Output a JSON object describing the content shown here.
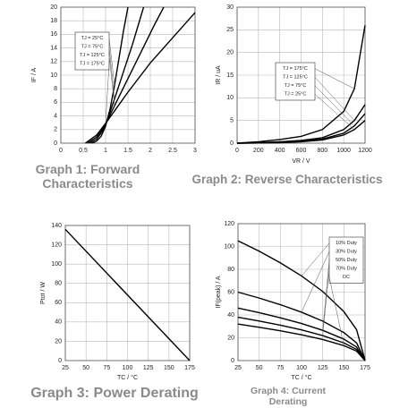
{
  "chart_data": [
    {
      "type": "line",
      "title": "Graph 1: Forward Characteristics",
      "ylabel": "IF / A",
      "xlim": [
        0,
        3
      ],
      "xticks": [
        0,
        0.5,
        1,
        1.5,
        2,
        2.5,
        3
      ],
      "ylim": [
        0,
        20
      ],
      "yticks": [
        0,
        2,
        4,
        6,
        8,
        10,
        12,
        14,
        16,
        18,
        20
      ],
      "grid": true,
      "series": [
        {
          "name": "TJ = 25°C",
          "color": "#000000",
          "x": [
            0.7,
            0.8,
            0.9,
            1.0,
            1.1,
            1.2,
            1.3,
            1.4,
            1.5
          ],
          "values": [
            0,
            0.3,
            1,
            2.5,
            5,
            8.5,
            12.5,
            16.5,
            20
          ]
        },
        {
          "name": "TJ = 75°C",
          "color": "#000000",
          "x": [
            0.65,
            0.8,
            0.9,
            1.0,
            1.2,
            1.4,
            1.6,
            1.85
          ],
          "values": [
            0,
            0.6,
            1.5,
            2.7,
            6.5,
            10.5,
            14.5,
            20
          ]
        },
        {
          "name": "TJ = 125°C",
          "color": "#000000",
          "x": [
            0.6,
            0.8,
            1.0,
            1.2,
            1.5,
            1.8,
            2.1,
            2.3
          ],
          "values": [
            0,
            0.9,
            2.8,
            5.5,
            9.5,
            13.5,
            17.5,
            20
          ]
        },
        {
          "name": "TJ = 175°C",
          "color": "#000000",
          "x": [
            0.55,
            0.8,
            1.0,
            1.5,
            2.0,
            2.5,
            3.0
          ],
          "values": [
            0,
            1.2,
            2.9,
            7.5,
            11.8,
            15.5,
            19.2
          ]
        }
      ]
    },
    {
      "type": "line",
      "title": "Graph 2: Reverse Characteristics",
      "xlabel": "VR / V",
      "ylabel": "IR / uA",
      "xlim": [
        0,
        1200
      ],
      "xticks": [
        0,
        200,
        400,
        600,
        800,
        1000,
        1200
      ],
      "ylim": [
        0,
        30
      ],
      "yticks": [
        0,
        5,
        10,
        15,
        20,
        25,
        30
      ],
      "grid": true,
      "series": [
        {
          "name": "TJ = 175°C",
          "color": "#000000",
          "x": [
            0,
            200,
            400,
            600,
            800,
            1000,
            1100,
            1200
          ],
          "values": [
            0,
            0.3,
            0.8,
            1.5,
            3,
            7,
            12,
            26
          ]
        },
        {
          "name": "TJ = 125°C",
          "color": "#000000",
          "x": [
            0,
            200,
            400,
            600,
            800,
            1000,
            1100,
            1200
          ],
          "values": [
            0,
            0.1,
            0.3,
            0.6,
            1.2,
            3,
            5,
            8.5
          ]
        },
        {
          "name": "TJ = 75°C",
          "color": "#000000",
          "x": [
            0,
            200,
            400,
            600,
            800,
            1000,
            1100,
            1200
          ],
          "values": [
            0,
            0.05,
            0.2,
            0.4,
            0.9,
            2.2,
            3.8,
            6.5
          ]
        },
        {
          "name": "TJ = 25°C",
          "color": "#000000",
          "x": [
            0,
            200,
            400,
            600,
            800,
            1000,
            1100,
            1200
          ],
          "values": [
            0,
            0.03,
            0.1,
            0.3,
            0.7,
            1.8,
            3,
            5
          ]
        }
      ]
    },
    {
      "type": "line",
      "title": "Graph 3: Power Derating",
      "xlabel": "TC / °C",
      "ylabel": "Ptot / W",
      "xlim": [
        25,
        175
      ],
      "xticks": [
        25,
        50,
        75,
        100,
        125,
        150,
        175
      ],
      "ylim": [
        0,
        140
      ],
      "yticks": [
        0,
        20,
        40,
        60,
        80,
        100,
        120,
        140
      ],
      "grid": true,
      "series": [
        {
          "color": "#000000",
          "x": [
            25,
            175
          ],
          "values": [
            136,
            0
          ]
        }
      ]
    },
    {
      "type": "line",
      "title": "Graph 4: Current Derating",
      "xlabel": "TC / °C",
      "ylabel": "IF(peak) / A",
      "xlim": [
        25,
        175
      ],
      "xticks": [
        25,
        50,
        75,
        100,
        125,
        150,
        175
      ],
      "ylim": [
        0,
        120
      ],
      "yticks": [
        0,
        20,
        40,
        60,
        80,
        100,
        120
      ],
      "grid": true,
      "series": [
        {
          "name": "10% Duty",
          "color": "#000000",
          "x": [
            25,
            50,
            75,
            100,
            125,
            150,
            165,
            175
          ],
          "values": [
            105,
            95.9,
            85.7,
            74.2,
            60.6,
            42.9,
            27.1,
            0
          ]
        },
        {
          "name": "30% Duty",
          "color": "#000000",
          "x": [
            25,
            50,
            75,
            100,
            125,
            150,
            165,
            175
          ],
          "values": [
            60,
            54.8,
            49,
            42.4,
            34.6,
            24.5,
            15.5,
            0
          ]
        },
        {
          "name": "50% Duty",
          "color": "#000000",
          "x": [
            25,
            50,
            75,
            100,
            125,
            150,
            165,
            175
          ],
          "values": [
            46,
            42,
            37.5,
            32.5,
            26.5,
            18.8,
            11.9,
            0
          ]
        },
        {
          "name": "70% Duty",
          "color": "#000000",
          "x": [
            25,
            50,
            75,
            100,
            125,
            150,
            165,
            175
          ],
          "values": [
            38,
            34.7,
            31,
            26.9,
            21.9,
            15.5,
            9.8,
            0
          ]
        },
        {
          "name": "DC",
          "color": "#000000",
          "x": [
            25,
            50,
            75,
            100,
            125,
            150,
            165,
            175
          ],
          "values": [
            32,
            29.2,
            26.1,
            22.6,
            18.5,
            13.1,
            8.3,
            0
          ]
        }
      ]
    }
  ]
}
